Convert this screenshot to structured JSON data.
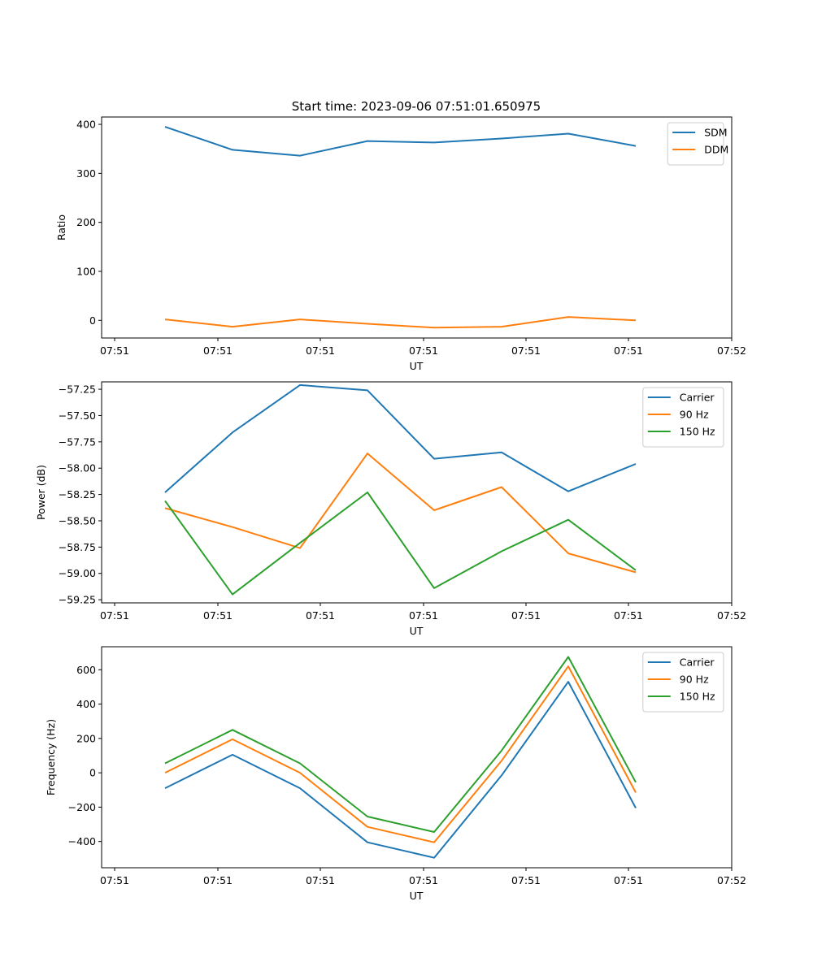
{
  "figure_title": "Start time: 2023-09-06 07:51:01.650975",
  "colors": {
    "blue": "#1f77b4",
    "orange": "#ff7f0e",
    "green": "#2ca02c"
  },
  "chart_data": [
    {
      "type": "line",
      "title": "Start time: 2023-09-06 07:51:01.650975",
      "xlabel": "UT",
      "ylabel": "Ratio",
      "x_index": [
        1,
        2,
        3,
        4,
        5,
        6,
        7,
        8
      ],
      "xlim": [
        0.23,
        9.43
      ],
      "xticks": [
        0.23,
        1.76,
        3.29,
        4.82,
        6.35,
        7.88,
        9.43
      ],
      "xtick_labels": [
        "07:51",
        "07:51",
        "07:51",
        "07:51",
        "07:51",
        "07:51",
        "07:52"
      ],
      "ylim": [
        -36,
        415
      ],
      "yticks": [
        0,
        100,
        200,
        300,
        400
      ],
      "ytick_labels": [
        "0",
        "100",
        "200",
        "300",
        "400"
      ],
      "legend": "top-right",
      "grid": false,
      "series": [
        {
          "name": "SDM",
          "color": "#1f77b4",
          "values": [
            395,
            348,
            336,
            366,
            363,
            371,
            381,
            356
          ]
        },
        {
          "name": "DDM",
          "color": "#ff7f0e",
          "values": [
            2,
            -13,
            2,
            -7,
            -15,
            -13,
            7,
            0
          ]
        }
      ]
    },
    {
      "type": "line",
      "title": "",
      "xlabel": "UT",
      "ylabel": "Power (dB)",
      "x_index": [
        1,
        2,
        3,
        4,
        5,
        6,
        7,
        8
      ],
      "xlim": [
        0.23,
        9.43
      ],
      "xticks": [
        0.23,
        1.76,
        3.29,
        4.82,
        6.35,
        7.88,
        9.43
      ],
      "xtick_labels": [
        "07:51",
        "07:51",
        "07:51",
        "07:51",
        "07:51",
        "07:51",
        "07:52"
      ],
      "ylim": [
        -59.28,
        -57.18
      ],
      "yticks": [
        -57.25,
        -57.5,
        -57.75,
        -58.0,
        -58.25,
        -58.5,
        -58.75,
        -59.0,
        -59.25
      ],
      "ytick_labels": [
        "−57.25",
        "−57.50",
        "−57.75",
        "−58.00",
        "−58.25",
        "−58.50",
        "−58.75",
        "−59.00",
        "−59.25"
      ],
      "legend": "top-right",
      "grid": false,
      "series": [
        {
          "name": "Carrier",
          "color": "#1f77b4",
          "values": [
            -58.23,
            -57.66,
            -57.21,
            -57.26,
            -57.91,
            -57.85,
            -58.22,
            -57.96
          ]
        },
        {
          "name": "90 Hz",
          "color": "#ff7f0e",
          "values": [
            -58.38,
            -58.56,
            -58.76,
            -57.86,
            -58.4,
            -58.18,
            -58.81,
            -58.99
          ]
        },
        {
          "name": "150 Hz",
          "color": "#2ca02c",
          "values": [
            -58.31,
            -59.2,
            -58.71,
            -58.23,
            -59.14,
            -58.79,
            -58.49,
            -58.97
          ]
        }
      ]
    },
    {
      "type": "line",
      "title": "",
      "xlabel": "UT",
      "ylabel": "Frequency (Hz)",
      "x_index": [
        1,
        2,
        3,
        4,
        5,
        6,
        7,
        8
      ],
      "xlim": [
        0.23,
        9.43
      ],
      "xticks": [
        0.23,
        1.76,
        3.29,
        4.82,
        6.35,
        7.88,
        9.43
      ],
      "xtick_labels": [
        "07:51",
        "07:51",
        "07:51",
        "07:51",
        "07:51",
        "07:51",
        "07:52"
      ],
      "ylim": [
        -553,
        734
      ],
      "yticks": [
        -400,
        -200,
        0,
        200,
        400,
        600
      ],
      "ytick_labels": [
        "−400",
        "−200",
        "0",
        "200",
        "400",
        "600"
      ],
      "legend": "top-right",
      "grid": false,
      "series": [
        {
          "name": "Carrier",
          "color": "#1f77b4",
          "values": [
            -90,
            105,
            -90,
            -405,
            -495,
            -15,
            530,
            -205
          ]
        },
        {
          "name": "90 Hz",
          "color": "#ff7f0e",
          "values": [
            0,
            195,
            0,
            -315,
            -405,
            70,
            620,
            -115
          ]
        },
        {
          "name": "150 Hz",
          "color": "#2ca02c",
          "values": [
            55,
            250,
            55,
            -255,
            -345,
            130,
            675,
            -55
          ]
        }
      ]
    }
  ]
}
